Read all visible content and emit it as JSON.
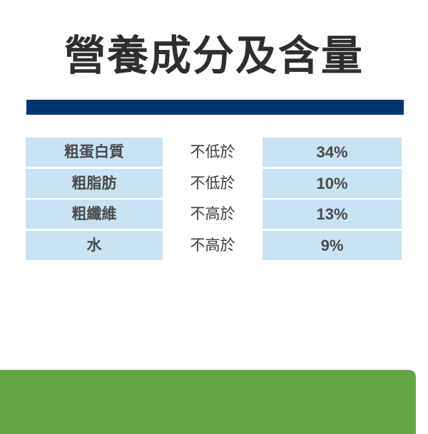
{
  "title": "營養成分及含量",
  "colors": {
    "header_bar": "#003470",
    "cell_bg": "#c7e3f4",
    "footer_green": "#62a744"
  },
  "table": {
    "rows": [
      {
        "label": "粗蛋白質",
        "condition": "不低於",
        "value": "34%"
      },
      {
        "label": "粗脂肪",
        "condition": "不低於",
        "value": "10%"
      },
      {
        "label": "粗纖維",
        "condition": "不高於",
        "value": "13%"
      },
      {
        "label": "水",
        "condition": "不高於",
        "value": "9%"
      }
    ]
  }
}
